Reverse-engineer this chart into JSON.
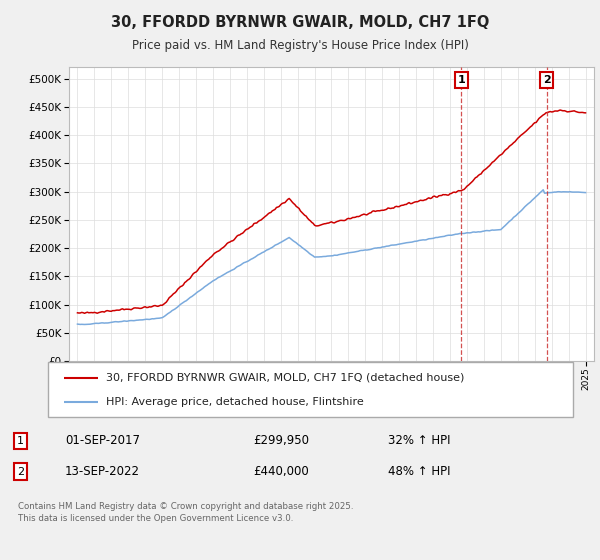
{
  "title": "30, FFORDD BYRNWR GWAIR, MOLD, CH7 1FQ",
  "subtitle": "Price paid vs. HM Land Registry's House Price Index (HPI)",
  "red_label": "30, FFORDD BYRNWR GWAIR, MOLD, CH7 1FQ (detached house)",
  "blue_label": "HPI: Average price, detached house, Flintshire",
  "annotation1": {
    "num": "1",
    "date": "01-SEP-2017",
    "price": "£299,950",
    "pct": "32% ↑ HPI",
    "x": 2017.67
  },
  "annotation2": {
    "num": "2",
    "date": "13-SEP-2022",
    "price": "£440,000",
    "pct": "48% ↑ HPI",
    "x": 2022.71
  },
  "footer": "Contains HM Land Registry data © Crown copyright and database right 2025.\nThis data is licensed under the Open Government Licence v3.0.",
  "ylim": [
    0,
    520000
  ],
  "xlim": [
    1994.5,
    2025.5
  ],
  "yticks": [
    0,
    50000,
    100000,
    150000,
    200000,
    250000,
    300000,
    350000,
    400000,
    450000,
    500000
  ],
  "red_color": "#cc0000",
  "blue_color": "#7aaadd",
  "vline_color": "#cc3333",
  "background_color": "#f0f0f0",
  "plot_bg_color": "#ffffff",
  "grid_color": "#dddddd"
}
